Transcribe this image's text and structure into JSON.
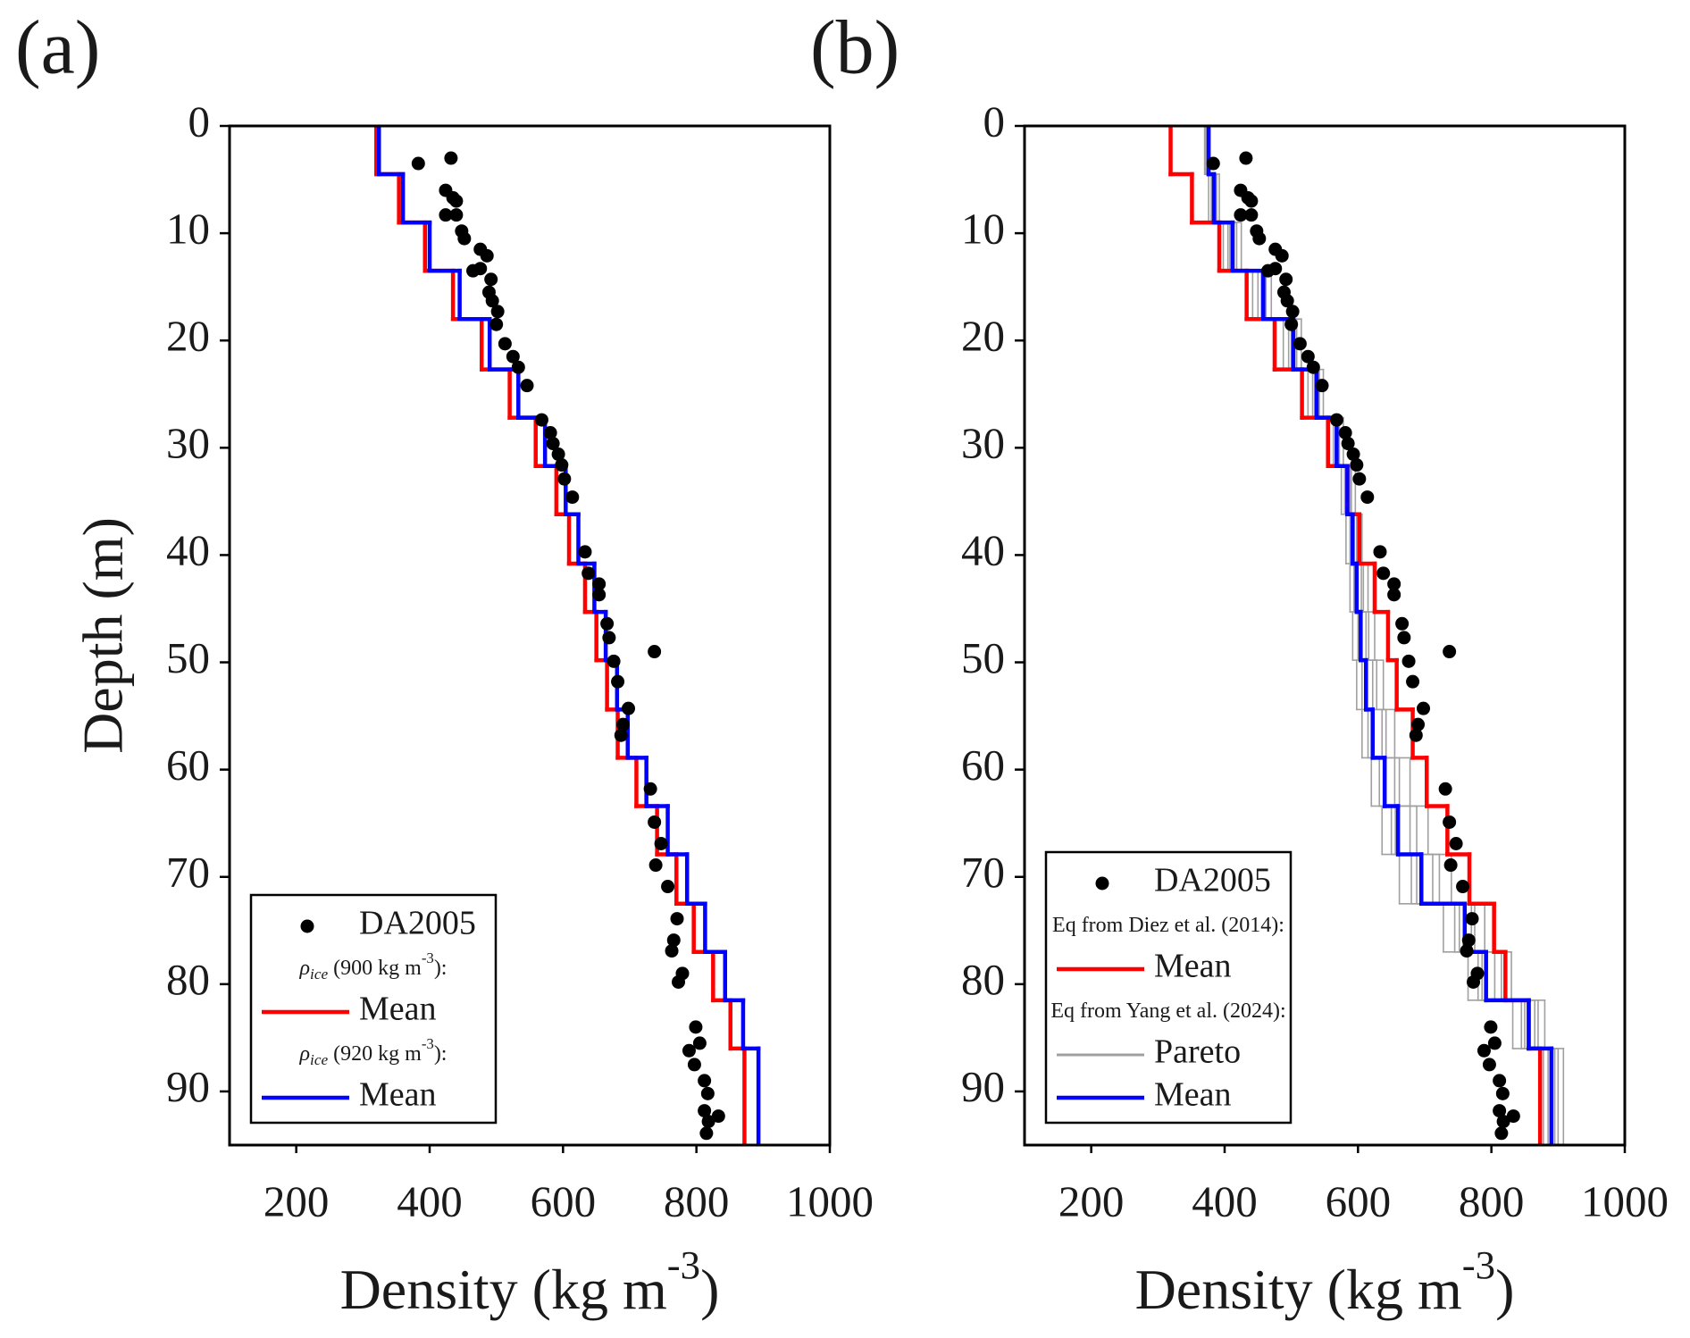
{
  "chart_data": [
    {
      "type": "line",
      "panel_label": "(a)",
      "xlabel": {
        "text": "Density (kg m",
        "sup": "-3",
        "end": ")"
      },
      "ylabel": "Depth (m)",
      "xlim": [
        100,
        1000
      ],
      "xticks": [
        200,
        400,
        600,
        800,
        1000
      ],
      "ylim": [
        0,
        95
      ],
      "y_reversed": true,
      "yticks": [
        0,
        10,
        20,
        30,
        40,
        50,
        60,
        70,
        80,
        90
      ],
      "legend": "lower left",
      "layer_depths": [
        0,
        4.5,
        9,
        13.5,
        18,
        22.7,
        27.2,
        31.7,
        36.2,
        40.8,
        45.3,
        49.8,
        54.4,
        58.9,
        63.4,
        67.9,
        72.5,
        77,
        81.5,
        86,
        95
      ],
      "series": [
        {
          "name": "DA2005",
          "color": "#000000",
          "style": "scatter",
          "x": [
            383,
            432,
            424,
            435,
            440,
            424,
            440,
            448,
            452,
            476,
            486,
            476,
            465,
            492,
            489,
            494,
            502,
            500,
            513,
            525,
            533,
            546,
            568,
            581,
            585,
            593,
            598,
            602,
            614,
            633,
            638,
            654,
            654,
            666,
            669,
            676,
            737,
            682,
            698,
            690,
            687,
            731,
            737,
            747,
            739,
            757,
            771,
            766,
            763,
            779,
            773,
            799,
            805,
            789,
            797,
            812,
            817,
            812,
            818,
            833,
            815
          ],
          "y": [
            3.5,
            3.0,
            6.0,
            6.7,
            7.0,
            8.3,
            8.3,
            9.8,
            10.5,
            11.5,
            12.1,
            13.3,
            13.5,
            14.3,
            15.5,
            16.3,
            17.3,
            18.5,
            20.3,
            21.5,
            22.5,
            24.2,
            27.4,
            28.6,
            29.6,
            30.6,
            31.6,
            32.9,
            34.6,
            39.7,
            41.7,
            42.7,
            43.7,
            46.4,
            47.7,
            49.9,
            49.0,
            51.8,
            54.3,
            55.8,
            56.8,
            61.8,
            64.9,
            66.9,
            68.9,
            70.9,
            73.9,
            75.9,
            76.9,
            79.0,
            79.8,
            84.0,
            85.5,
            86.2,
            87.5,
            89.0,
            90.2,
            91.8,
            92.8,
            92.3,
            93.9
          ]
        },
        {
          "name": "Mean",
          "color": "#ff0000",
          "style": "step",
          "legend_heading": {
            "symbol": "ρ",
            "sub": "ice",
            "text": " (900 kg m",
            "sup": "-3",
            "end": "):"
          },
          "values": [
            320,
            354,
            393,
            435,
            478,
            520,
            559,
            590,
            609,
            633,
            650,
            666,
            682,
            710,
            741,
            770,
            796,
            825,
            851,
            872
          ]
        },
        {
          "name": "Mean",
          "color": "#0000ff",
          "style": "step",
          "legend_heading": {
            "symbol": "ρ",
            "sub": "ice",
            "text": " (920 kg m",
            "sup": "-3",
            "end": "):"
          },
          "values": [
            324,
            360,
            400,
            445,
            490,
            533,
            573,
            604,
            623,
            647,
            664,
            681,
            697,
            725,
            757,
            786,
            813,
            843,
            870,
            893
          ]
        }
      ]
    },
    {
      "type": "line",
      "panel_label": "(b)",
      "xlabel": {
        "text": "Density (kg m",
        "sup": "-3",
        "end": ")"
      },
      "xlim": [
        100,
        1000
      ],
      "xticks": [
        200,
        400,
        600,
        800,
        1000
      ],
      "ylim": [
        0,
        95
      ],
      "y_reversed": true,
      "yticks": [
        0,
        10,
        20,
        30,
        40,
        50,
        60,
        70,
        80,
        90
      ],
      "legend": "lower left",
      "layer_depths": [
        0,
        4.5,
        9,
        13.5,
        18,
        22.7,
        27.2,
        31.7,
        36.2,
        40.8,
        45.3,
        49.8,
        54.4,
        58.9,
        63.4,
        67.9,
        72.5,
        77,
        81.5,
        86,
        95
      ],
      "series": [
        {
          "name": "DA2005",
          "color": "#000000",
          "style": "scatter",
          "x": [
            383,
            432,
            424,
            435,
            440,
            424,
            440,
            448,
            452,
            476,
            486,
            476,
            465,
            492,
            489,
            494,
            502,
            500,
            513,
            525,
            533,
            546,
            568,
            581,
            585,
            593,
            598,
            602,
            614,
            633,
            638,
            654,
            654,
            666,
            669,
            676,
            737,
            682,
            698,
            690,
            687,
            731,
            737,
            747,
            739,
            757,
            771,
            766,
            763,
            779,
            773,
            799,
            805,
            789,
            797,
            812,
            817,
            812,
            818,
            833,
            815
          ],
          "y": [
            3.5,
            3.0,
            6.0,
            6.7,
            7.0,
            8.3,
            8.3,
            9.8,
            10.5,
            11.5,
            12.1,
            13.3,
            13.5,
            14.3,
            15.5,
            16.3,
            17.3,
            18.5,
            20.3,
            21.5,
            22.5,
            24.2,
            27.4,
            28.6,
            29.6,
            30.6,
            31.6,
            32.9,
            34.6,
            39.7,
            41.7,
            42.7,
            43.7,
            46.4,
            47.7,
            49.9,
            49.0,
            51.8,
            54.3,
            55.8,
            56.8,
            61.8,
            64.9,
            66.9,
            68.9,
            70.9,
            73.9,
            75.9,
            76.9,
            79.0,
            79.8,
            84.0,
            85.5,
            86.2,
            87.5,
            89.0,
            90.2,
            91.8,
            92.8,
            92.3,
            93.9
          ]
        },
        {
          "name": "Mean",
          "color": "#ff0000",
          "style": "step",
          "legend_heading": {
            "text": "Eq from Diez et al. (2014):"
          },
          "values": [
            319,
            351,
            392,
            433,
            475,
            516,
            555,
            584,
            602,
            625,
            645,
            658,
            682,
            703,
            734,
            767,
            804,
            821,
            856,
            873
          ]
        },
        {
          "name": "Pareto",
          "color": "#a0a0a0",
          "style": "step-set",
          "legend_heading": {
            "text": "Eq from Yang et al. (2024):"
          },
          "profiles": [
            [
              378,
              392,
              425,
              470,
              515,
              548,
              578,
              596,
              606,
              615,
              625,
              638,
              655,
              678,
              705,
              740,
              790,
              830,
              880,
              908
            ],
            [
              374,
              388,
              418,
              462,
              508,
              542,
              572,
              590,
              600,
              608,
              616,
              628,
              642,
              662,
              688,
              722,
              775,
              815,
              870,
              900
            ],
            [
              372,
              380,
              405,
              450,
              496,
              532,
              563,
              580,
              588,
              594,
              600,
              606,
              615,
              632,
              650,
              680,
              745,
              780,
              845,
              885
            ],
            [
              370,
              376,
              398,
              442,
              488,
              525,
              556,
              575,
              582,
              588,
              592,
              598,
              606,
              620,
              636,
              662,
              728,
              765,
              832,
              878
            ],
            [
              376,
              386,
              414,
              460,
              505,
              540,
              570,
              588,
              598,
              605,
              612,
              622,
              636,
              655,
              678,
              712,
              770,
              805,
              865,
              895
            ],
            [
              373,
              382,
              408,
              455,
              500,
              535,
              566,
              582,
              590,
              596,
              602,
              610,
              620,
              638,
              656,
              688,
              752,
              786,
              850,
              888
            ]
          ]
        },
        {
          "name": "Mean",
          "color": "#0000ff",
          "style": "step",
          "values": [
            376,
            384,
            412,
            458,
            503,
            538,
            568,
            584,
            592,
            598,
            604,
            612,
            622,
            640,
            660,
            695,
            760,
            792,
            856,
            890
          ]
        }
      ]
    }
  ]
}
